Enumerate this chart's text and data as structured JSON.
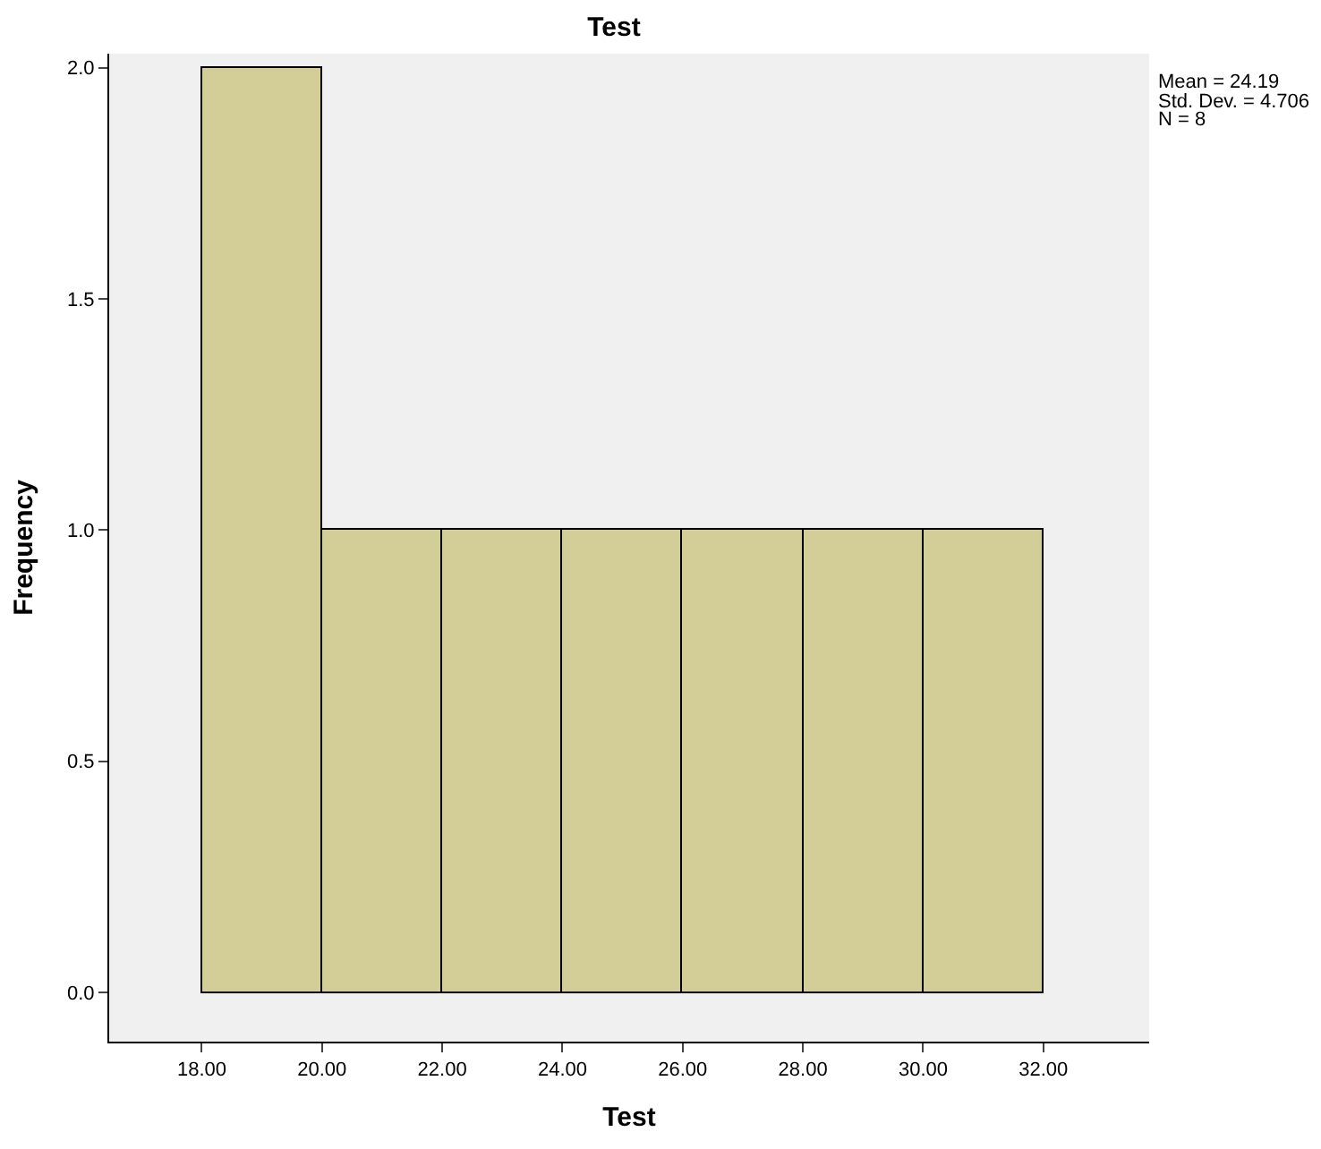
{
  "chart_data": {
    "type": "histogram",
    "title": "Test",
    "xlabel": "Test",
    "ylabel": "Frequency",
    "bins": [
      18,
      20,
      22,
      24,
      26,
      28,
      30,
      32
    ],
    "values": [
      2,
      1,
      1,
      1,
      1,
      1,
      1
    ],
    "color": "#d3ce98",
    "xlim": [
      16.46,
      33.76
    ],
    "xticks": [
      {
        "value": 18,
        "label": "18.00"
      },
      {
        "value": 20,
        "label": "20.00"
      },
      {
        "value": 22,
        "label": "22.00"
      },
      {
        "value": 24,
        "label": "24.00"
      },
      {
        "value": 26,
        "label": "26.00"
      },
      {
        "value": 28,
        "label": "28.00"
      },
      {
        "value": 30,
        "label": "30.00"
      },
      {
        "value": 32,
        "label": "32.00"
      }
    ],
    "ylim": [
      -0.106,
      2.03
    ],
    "yticks": [
      {
        "value": 0,
        "label": "0.0"
      },
      {
        "value": 0.5,
        "label": "0.5"
      },
      {
        "value": 1,
        "label": "1.0"
      },
      {
        "value": 1.5,
        "label": "1.5"
      },
      {
        "value": 2,
        "label": "2.0"
      }
    ],
    "annotations": [
      "Mean = 24.19",
      "Std. Dev. = 4.706",
      "N = 8"
    ],
    "grid": false
  }
}
